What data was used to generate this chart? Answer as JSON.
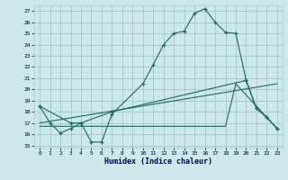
{
  "xlabel": "Humidex (Indice chaleur)",
  "bg_color": "#cce8e8",
  "grid_color": "#aacccc",
  "line_color": "#1a6b60",
  "xlim": [
    -0.5,
    23.5
  ],
  "ylim": [
    14.8,
    27.5
  ],
  "xticks": [
    0,
    1,
    2,
    3,
    4,
    5,
    6,
    7,
    8,
    9,
    10,
    11,
    12,
    13,
    14,
    15,
    16,
    17,
    18,
    19,
    20,
    21,
    22,
    23
  ],
  "yticks": [
    15,
    16,
    17,
    18,
    19,
    20,
    21,
    22,
    23,
    24,
    25,
    26,
    27
  ],
  "line1_x": [
    0,
    1,
    2,
    3,
    4,
    5,
    6,
    7,
    10,
    11,
    12,
    13,
    14,
    15,
    16,
    17,
    18,
    19,
    20,
    21,
    22,
    23
  ],
  "line1_y": [
    18.5,
    17.0,
    16.1,
    16.5,
    17.0,
    15.3,
    15.3,
    17.8,
    20.5,
    22.2,
    24.0,
    25.0,
    25.2,
    26.8,
    27.2,
    26.0,
    25.1,
    25.0,
    20.8,
    18.3,
    17.5,
    16.5
  ],
  "line2_x": [
    0,
    3,
    4,
    7,
    20,
    21,
    22,
    23
  ],
  "line2_y": [
    18.5,
    17.0,
    17.0,
    18.0,
    20.8,
    18.3,
    17.5,
    16.5
  ],
  "line3_x": [
    0,
    18,
    19,
    23
  ],
  "line3_y": [
    16.7,
    16.7,
    20.5,
    16.5
  ],
  "line4_x": [
    0,
    23
  ],
  "line4_y": [
    17.0,
    20.5
  ]
}
